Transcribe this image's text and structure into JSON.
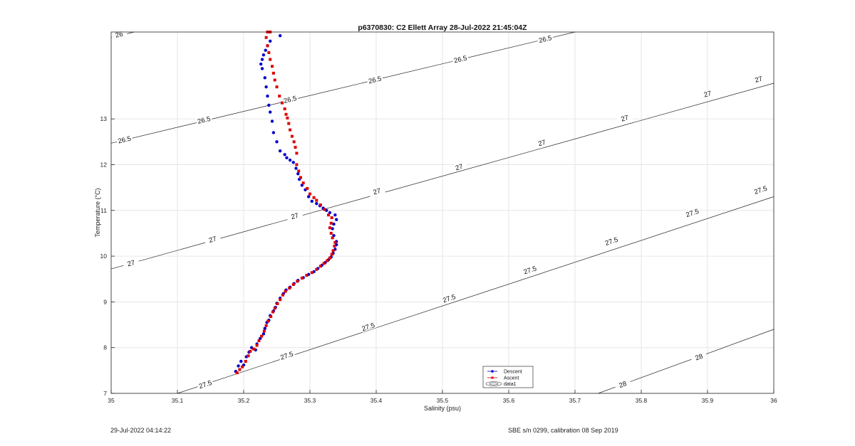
{
  "figure": {
    "footer_left": "29-Jul-2022 04:14:22",
    "footer_right": "SBE s/n 0299, calibration 08 Sep 2019"
  },
  "chart_data": {
    "type": "scatter",
    "title": "p6370830: C2 Ellett Array 28-Jul-2022 21:45:04Z",
    "xlabel": "Salinity (psu)",
    "ylabel": "Temperature (°C)",
    "xlim": [
      35,
      36
    ],
    "ylim": [
      7,
      14.9
    ],
    "xticks": [
      35,
      35.1,
      35.2,
      35.3,
      35.4,
      35.5,
      35.6,
      35.7,
      35.8,
      35.9,
      36
    ],
    "xtick_labels": [
      "35",
      "35.1",
      "35.2",
      "35.3",
      "35.4",
      "35.5",
      "35.6",
      "35.7",
      "35.8",
      "35.9",
      "36"
    ],
    "yticks": [
      7,
      8,
      9,
      10,
      11,
      12,
      13
    ],
    "ytick_labels": [
      "7",
      "8",
      "9",
      "10",
      "11",
      "12",
      "13"
    ],
    "grid": true,
    "legend_position": "bottom-center",
    "legend": [
      "Descent",
      "Ascent",
      "data1"
    ],
    "colors": {
      "descent": "#0000cc",
      "ascent": "#dd0000",
      "contour": "#222222",
      "grid": "#e6e6e6"
    },
    "series": [
      {
        "name": "Descent",
        "color": "#0000cc",
        "marker": "point",
        "points": [
          [
            35.188,
            7.48
          ],
          [
            35.192,
            7.6
          ],
          [
            35.196,
            7.7
          ],
          [
            35.2,
            7.62
          ],
          [
            35.204,
            7.8
          ],
          [
            35.208,
            7.9
          ],
          [
            35.212,
            8.0
          ],
          [
            35.218,
            7.95
          ],
          [
            35.22,
            8.08
          ],
          [
            35.225,
            8.2
          ],
          [
            35.23,
            8.3
          ],
          [
            35.232,
            8.42
          ],
          [
            35.235,
            8.55
          ],
          [
            35.238,
            8.6
          ],
          [
            35.24,
            8.7
          ],
          [
            35.245,
            8.8
          ],
          [
            35.248,
            8.88
          ],
          [
            35.25,
            8.97
          ],
          [
            35.255,
            9.08
          ],
          [
            35.26,
            9.18
          ],
          [
            35.264,
            9.26
          ],
          [
            35.27,
            9.32
          ],
          [
            35.276,
            9.4
          ],
          [
            35.282,
            9.47
          ],
          [
            35.29,
            9.53
          ],
          [
            35.298,
            9.6
          ],
          [
            35.306,
            9.66
          ],
          [
            35.312,
            9.73
          ],
          [
            35.318,
            9.8
          ],
          [
            35.323,
            9.86
          ],
          [
            35.328,
            9.92
          ],
          [
            35.332,
            9.98
          ],
          [
            35.335,
            10.06
          ],
          [
            35.338,
            10.15
          ],
          [
            35.34,
            10.25
          ],
          [
            35.34,
            10.32
          ],
          [
            35.336,
            10.45
          ],
          [
            35.334,
            10.6
          ],
          [
            35.336,
            10.7
          ],
          [
            35.34,
            10.8
          ],
          [
            35.338,
            10.9
          ],
          [
            35.33,
            10.95
          ],
          [
            35.325,
            11.0
          ],
          [
            35.32,
            11.05
          ],
          [
            35.315,
            11.1
          ],
          [
            35.31,
            11.15
          ],
          [
            35.303,
            11.2
          ],
          [
            35.298,
            11.3
          ],
          [
            35.293,
            11.45
          ],
          [
            35.288,
            11.55
          ],
          [
            35.284,
            11.68
          ],
          [
            35.282,
            11.8
          ],
          [
            35.279,
            11.92
          ],
          [
            35.275,
            12.05
          ],
          [
            35.27,
            12.1
          ],
          [
            35.265,
            12.15
          ],
          [
            35.262,
            12.22
          ],
          [
            35.255,
            12.3
          ],
          [
            35.25,
            12.5
          ],
          [
            35.245,
            12.7
          ],
          [
            35.243,
            12.95
          ],
          [
            35.24,
            13.15
          ],
          [
            35.238,
            13.3
          ],
          [
            35.236,
            13.5
          ],
          [
            35.234,
            13.7
          ],
          [
            35.232,
            13.9
          ],
          [
            35.228,
            14.1
          ],
          [
            35.226,
            14.2
          ],
          [
            35.228,
            14.3
          ],
          [
            35.23,
            14.4
          ],
          [
            35.233,
            14.5
          ],
          [
            35.236,
            14.6
          ],
          [
            35.24,
            14.7
          ],
          [
            35.255,
            14.82
          ]
        ]
      },
      {
        "name": "Ascent",
        "color": "#dd0000",
        "marker": "square",
        "points": [
          [
            35.19,
            7.45
          ],
          [
            35.194,
            7.52
          ],
          [
            35.198,
            7.58
          ],
          [
            35.203,
            7.7
          ],
          [
            35.207,
            7.82
          ],
          [
            35.21,
            7.92
          ],
          [
            35.215,
            7.97
          ],
          [
            35.22,
            8.05
          ],
          [
            35.223,
            8.15
          ],
          [
            35.227,
            8.25
          ],
          [
            35.231,
            8.36
          ],
          [
            35.234,
            8.48
          ],
          [
            35.237,
            8.58
          ],
          [
            35.241,
            8.68
          ],
          [
            35.244,
            8.78
          ],
          [
            35.247,
            8.86
          ],
          [
            35.251,
            8.96
          ],
          [
            35.255,
            9.05
          ],
          [
            35.259,
            9.15
          ],
          [
            35.263,
            9.23
          ],
          [
            35.269,
            9.3
          ],
          [
            35.275,
            9.38
          ],
          [
            35.281,
            9.45
          ],
          [
            35.288,
            9.52
          ],
          [
            35.295,
            9.58
          ],
          [
            35.303,
            9.64
          ],
          [
            35.31,
            9.71
          ],
          [
            35.316,
            9.78
          ],
          [
            35.321,
            9.84
          ],
          [
            35.326,
            9.9
          ],
          [
            35.33,
            9.96
          ],
          [
            35.333,
            10.04
          ],
          [
            35.335,
            10.12
          ],
          [
            35.337,
            10.22
          ],
          [
            35.338,
            10.3
          ],
          [
            35.334,
            10.4
          ],
          [
            35.332,
            10.5
          ],
          [
            35.33,
            10.62
          ],
          [
            35.332,
            10.72
          ],
          [
            35.333,
            10.84
          ],
          [
            35.328,
            10.9
          ],
          [
            35.322,
            11.02
          ],
          [
            35.316,
            11.12
          ],
          [
            35.31,
            11.22
          ],
          [
            35.306,
            11.28
          ],
          [
            35.3,
            11.36
          ],
          [
            35.296,
            11.48
          ],
          [
            35.29,
            11.6
          ],
          [
            35.286,
            11.72
          ],
          [
            35.283,
            11.86
          ],
          [
            35.28,
            12.0
          ],
          [
            35.28,
            12.25
          ],
          [
            35.278,
            12.38
          ],
          [
            35.276,
            12.5
          ],
          [
            35.273,
            12.62
          ],
          [
            35.27,
            12.76
          ],
          [
            35.268,
            12.9
          ],
          [
            35.266,
            13.02
          ],
          [
            35.264,
            13.1
          ],
          [
            35.262,
            13.22
          ],
          [
            35.258,
            13.35
          ],
          [
            35.254,
            13.5
          ],
          [
            35.25,
            13.7
          ],
          [
            35.247,
            13.85
          ],
          [
            35.245,
            14.0
          ],
          [
            35.243,
            14.15
          ],
          [
            35.24,
            14.3
          ],
          [
            35.238,
            14.45
          ],
          [
            35.236,
            14.6
          ],
          [
            35.234,
            14.78
          ],
          [
            35.236,
            14.9
          ],
          [
            35.24,
            14.9
          ]
        ]
      }
    ],
    "contours": [
      {
        "sigma": 26.0,
        "label": "26",
        "line": [
          [
            35.0,
            14.78
          ],
          [
            35.035,
            14.9
          ]
        ],
        "labels_at": [
          [
            35.012,
            14.85
          ]
        ]
      },
      {
        "sigma": 26.5,
        "label": "26.5",
        "line": [
          [
            35.0,
            12.47
          ],
          [
            35.7,
            14.9
          ]
        ],
        "labels_at": [
          [
            35.02,
            12.55
          ],
          [
            35.14,
            12.98
          ],
          [
            35.27,
            13.43
          ],
          [
            35.398,
            13.86
          ],
          [
            35.527,
            14.31
          ],
          [
            35.655,
            14.75
          ]
        ]
      },
      {
        "sigma": 27.0,
        "label": "27",
        "line": [
          [
            35.0,
            9.72
          ],
          [
            36.0,
            13.78
          ]
        ],
        "labels_at": [
          [
            35.03,
            9.85
          ],
          [
            35.153,
            10.37
          ],
          [
            35.277,
            10.88
          ],
          [
            35.401,
            11.42
          ],
          [
            35.525,
            11.95
          ],
          [
            35.65,
            12.48
          ],
          [
            35.775,
            13.02
          ],
          [
            35.9,
            13.55
          ],
          [
            35.977,
            13.87
          ]
        ]
      },
      {
        "sigma": 27.5,
        "label": "27.5",
        "line": [
          [
            35.1,
            7.0
          ],
          [
            36.0,
            11.3
          ]
        ],
        "labels_at": [
          [
            35.142,
            7.2
          ],
          [
            35.265,
            7.83
          ],
          [
            35.388,
            8.46
          ],
          [
            35.51,
            9.08
          ],
          [
            35.632,
            9.7
          ],
          [
            35.755,
            10.33
          ],
          [
            35.877,
            10.95
          ],
          [
            35.98,
            11.45
          ]
        ]
      },
      {
        "sigma": 28.0,
        "label": "28",
        "line": [
          [
            35.735,
            7.0
          ],
          [
            36.0,
            8.4
          ]
        ],
        "labels_at": [
          [
            35.772,
            7.2
          ],
          [
            35.887,
            7.8
          ]
        ]
      }
    ]
  }
}
